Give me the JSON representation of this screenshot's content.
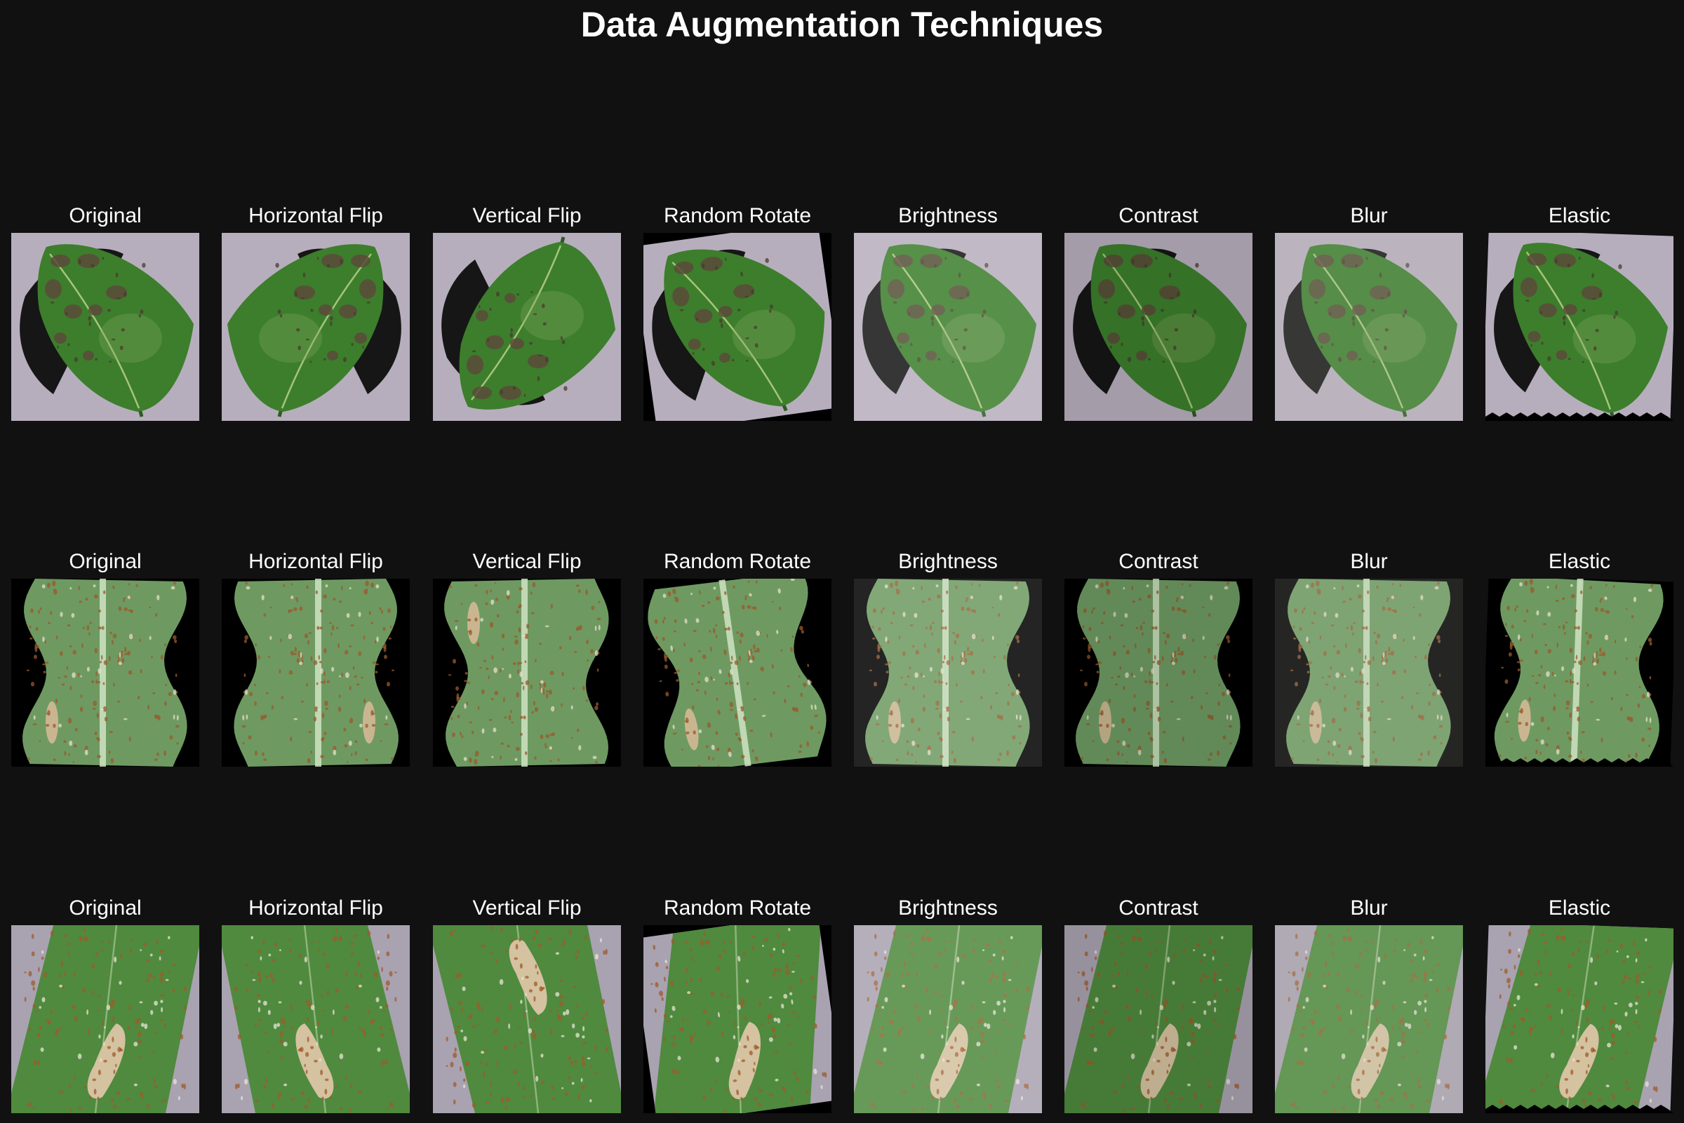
{
  "title": "Data Augmentation Techniques",
  "columns": [
    "Original",
    "Horizontal Flip",
    "Vertical Flip",
    "Random Rotate",
    "Brightness",
    "Contrast",
    "Blur",
    "Elastic"
  ],
  "rows": [
    {
      "subject": "leaf-with-dark-spots",
      "background_color": "#b7aebd",
      "leaf_color": "#3c7e2c",
      "lesion_color": "#5a4a3a"
    },
    {
      "subject": "corn-leaf-with-rust",
      "background_color": "#000000",
      "leaf_color": "#6e9a62",
      "lesion_color": "#c9b690"
    },
    {
      "subject": "corn-leaf-with-lesion",
      "background_color": "#a9a2b0",
      "leaf_color": "#4f8a3e",
      "lesion_color": "#d4c2a0"
    }
  ]
}
